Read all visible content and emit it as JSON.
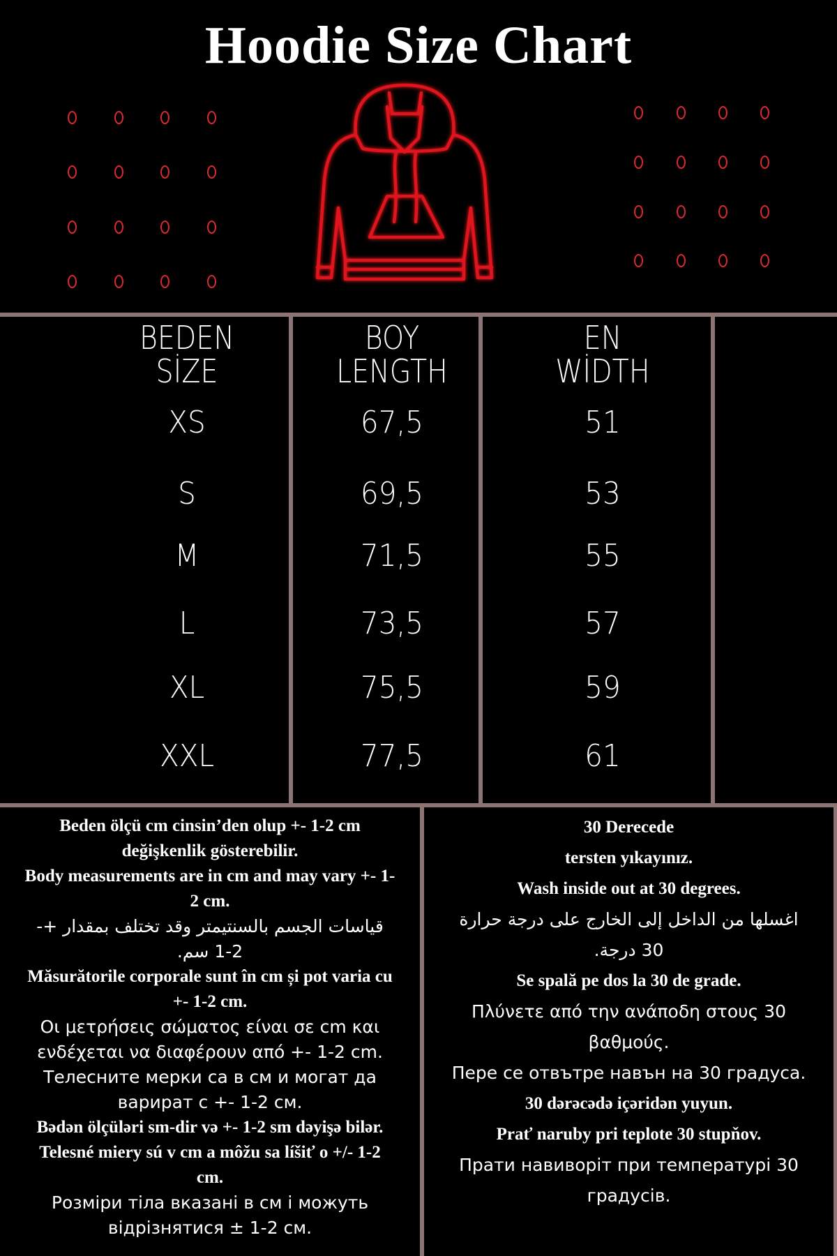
{
  "title": "Hoodie Size Chart",
  "colors": {
    "background": "#000000",
    "accent_red": "#e0141e",
    "grid_lines": "#8c7474",
    "text": "#ffffff"
  },
  "illustration": {
    "icon": "hoodie-outline-icon",
    "decoration": "red-ring-dot-grid"
  },
  "table": {
    "headers": [
      {
        "line1": "BEDEN",
        "line2": "SİZE"
      },
      {
        "line1": "BOY",
        "line2": "LENGTH"
      },
      {
        "line1": "EN",
        "line2": "WİDTH"
      }
    ],
    "rows": [
      {
        "size": "XS",
        "length": "67,5",
        "width": "51"
      },
      {
        "size": "S",
        "length": "69,5",
        "width": "53"
      },
      {
        "size": "M",
        "length": "71,5",
        "width": "55"
      },
      {
        "size": "L",
        "length": "73,5",
        "width": "57"
      },
      {
        "size": "XL",
        "length": "75,5",
        "width": "59"
      },
      {
        "size": "XXL",
        "length": "77,5",
        "width": "61"
      }
    ]
  },
  "notes_measurement": [
    "Beden ölçü cm cinsin’den olup +- 1-2 cm",
    "değişkenlik gösterebilir.",
    "Body measurements are in cm and may vary +- 1-",
    "2 cm.",
    "قياسات الجسم بالسنتيمتر وقد تختلف بمقدار +-",
    "1-2 سم.",
    "Măsurătorile corporale sunt în cm și pot varia cu",
    "+- 1-2 cm.",
    "Οι μετρήσεις σώματος είναι σε cm και",
    "ενδέχεται να διαφέρουν από +- 1-2 cm.",
    "Телесните мерки са в см и могат да",
    "варират с +- 1-2 см.",
    "Bədən ölçüləri sm-dir və +- 1-2 sm dəyişə bilər.",
    "Telesné miery sú v cm a môžu sa líšiť o +/- 1-2",
    "cm.",
    "Розміри тіла вказані в см і можуть",
    "відрізнятися ± 1-2 см."
  ],
  "notes_washing": [
    "30 Derecede",
    "tersten yıkayınız.",
    "Wash inside out at 30 degrees.",
    "اغسلها من الداخل إلى الخارج على درجة حرارة",
    "30 درجة.",
    "Se spală pe dos la 30 de grade.",
    "Πλύνετε από την ανάποδη στους 30",
    "βαθμούς.",
    "Пере се отвътре навън на 30 градуса.",
    "30 dərəcədə içəridən yuyun.",
    "Prať naruby pri teplote 30 stupňov.",
    "Прати навиворіт при температурі 30",
    "градусів."
  ]
}
